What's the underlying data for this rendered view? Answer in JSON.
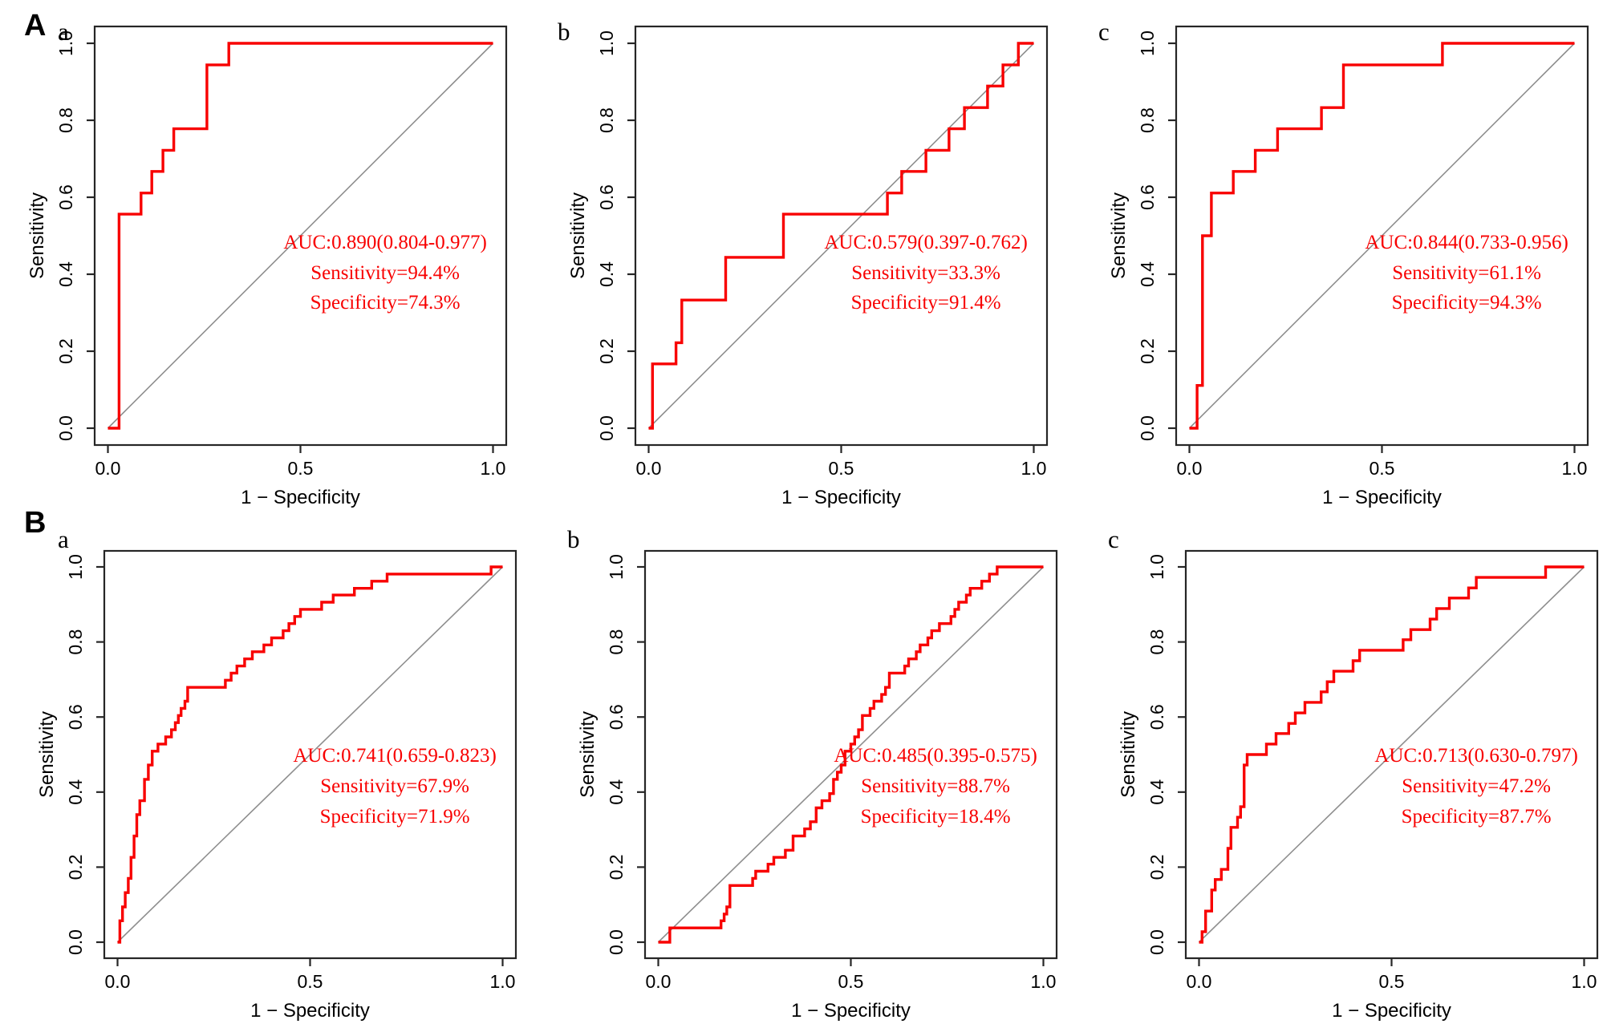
{
  "figure": {
    "background": "#ffffff",
    "colors": {
      "curve": "#f80000",
      "annotation": "#f80000",
      "diagonal": "#8e8e8e",
      "axis": "#262626",
      "text": "#000000"
    },
    "axes": {
      "x_label": "1 − Specificity",
      "y_label": "Sensitivity",
      "x_ticks": [
        "0.0",
        "0.5",
        "1.0"
      ],
      "x_tick_values": [
        0,
        0.5,
        1
      ],
      "y_ticks": [
        "0.0",
        "0.2",
        "0.4",
        "0.6",
        "0.8",
        "1.0"
      ],
      "y_tick_values": [
        0,
        0.2,
        0.4,
        0.6,
        0.8,
        1
      ],
      "xlim": [
        0,
        1
      ],
      "ylim": [
        0,
        1
      ]
    },
    "rows": [
      {
        "label": "A"
      },
      {
        "label": "B"
      }
    ]
  },
  "chart_data": [
    {
      "id": "A-a",
      "row": "A",
      "panel": "a",
      "type": "line",
      "title": "",
      "xlabel": "1 − Specificity",
      "ylabel": "Sensitivity",
      "annotation": {
        "auc": "AUC:0.890(0.804-0.977)",
        "sensitivity": "Sensitivity=94.4%",
        "specificity": "Specificity=74.3%"
      },
      "diagonal_reference": true,
      "roc_points": [
        [
          0,
          0
        ],
        [
          0.029,
          0
        ],
        [
          0.029,
          0.556
        ],
        [
          0.086,
          0.556
        ],
        [
          0.086,
          0.611
        ],
        [
          0.114,
          0.611
        ],
        [
          0.114,
          0.667
        ],
        [
          0.143,
          0.667
        ],
        [
          0.143,
          0.722
        ],
        [
          0.171,
          0.722
        ],
        [
          0.171,
          0.778
        ],
        [
          0.257,
          0.778
        ],
        [
          0.257,
          0.944
        ],
        [
          0.314,
          0.944
        ],
        [
          0.314,
          1
        ],
        [
          1,
          1
        ]
      ]
    },
    {
      "id": "A-b",
      "row": "A",
      "panel": "b",
      "type": "line",
      "title": "",
      "xlabel": "1 − Specificity",
      "ylabel": "Sensitivity",
      "annotation": {
        "auc": "AUC:0.579(0.397-0.762)",
        "sensitivity": "Sensitivity=33.3%",
        "specificity": "Specificity=91.4%"
      },
      "diagonal_reference": true,
      "roc_points": [
        [
          0,
          0
        ],
        [
          0.01,
          0
        ],
        [
          0.01,
          0.167
        ],
        [
          0.071,
          0.167
        ],
        [
          0.071,
          0.222
        ],
        [
          0.086,
          0.222
        ],
        [
          0.086,
          0.333
        ],
        [
          0.2,
          0.333
        ],
        [
          0.2,
          0.444
        ],
        [
          0.35,
          0.444
        ],
        [
          0.35,
          0.556
        ],
        [
          0.62,
          0.556
        ],
        [
          0.62,
          0.611
        ],
        [
          0.657,
          0.611
        ],
        [
          0.657,
          0.667
        ],
        [
          0.72,
          0.667
        ],
        [
          0.72,
          0.722
        ],
        [
          0.78,
          0.722
        ],
        [
          0.78,
          0.778
        ],
        [
          0.82,
          0.778
        ],
        [
          0.82,
          0.833
        ],
        [
          0.88,
          0.833
        ],
        [
          0.88,
          0.889
        ],
        [
          0.92,
          0.889
        ],
        [
          0.92,
          0.944
        ],
        [
          0.96,
          0.944
        ],
        [
          0.96,
          1
        ],
        [
          1,
          1
        ]
      ]
    },
    {
      "id": "A-c",
      "row": "A",
      "panel": "c",
      "type": "line",
      "title": "",
      "xlabel": "1 − Specificity",
      "ylabel": "Sensitivity",
      "annotation": {
        "auc": "AUC:0.844(0.733-0.956)",
        "sensitivity": "Sensitivity=61.1%",
        "specificity": "Specificity=94.3%"
      },
      "diagonal_reference": true,
      "roc_points": [
        [
          0,
          0
        ],
        [
          0.02,
          0
        ],
        [
          0.02,
          0.111
        ],
        [
          0.034,
          0.111
        ],
        [
          0.034,
          0.5
        ],
        [
          0.057,
          0.5
        ],
        [
          0.057,
          0.611
        ],
        [
          0.114,
          0.611
        ],
        [
          0.114,
          0.667
        ],
        [
          0.171,
          0.667
        ],
        [
          0.171,
          0.722
        ],
        [
          0.229,
          0.722
        ],
        [
          0.229,
          0.778
        ],
        [
          0.343,
          0.778
        ],
        [
          0.343,
          0.833
        ],
        [
          0.4,
          0.833
        ],
        [
          0.4,
          0.944
        ],
        [
          0.657,
          0.944
        ],
        [
          0.657,
          1
        ],
        [
          1,
          1
        ]
      ]
    },
    {
      "id": "B-a",
      "row": "B",
      "panel": "a",
      "type": "line",
      "title": "",
      "xlabel": "1 − Specificity",
      "ylabel": "Sensitivity",
      "annotation": {
        "auc": "AUC:0.741(0.659-0.823)",
        "sensitivity": "Sensitivity=67.9%",
        "specificity": "Specificity=71.9%"
      },
      "diagonal_reference": true,
      "roc_points": [
        [
          0,
          0
        ],
        [
          0.006,
          0
        ],
        [
          0.006,
          0.057
        ],
        [
          0.013,
          0.057
        ],
        [
          0.013,
          0.094
        ],
        [
          0.02,
          0.094
        ],
        [
          0.02,
          0.132
        ],
        [
          0.028,
          0.132
        ],
        [
          0.028,
          0.17
        ],
        [
          0.035,
          0.17
        ],
        [
          0.035,
          0.226
        ],
        [
          0.043,
          0.226
        ],
        [
          0.043,
          0.283
        ],
        [
          0.05,
          0.283
        ],
        [
          0.05,
          0.34
        ],
        [
          0.058,
          0.34
        ],
        [
          0.058,
          0.377
        ],
        [
          0.07,
          0.377
        ],
        [
          0.07,
          0.434
        ],
        [
          0.08,
          0.434
        ],
        [
          0.08,
          0.472
        ],
        [
          0.09,
          0.472
        ],
        [
          0.09,
          0.509
        ],
        [
          0.105,
          0.509
        ],
        [
          0.105,
          0.528
        ],
        [
          0.125,
          0.528
        ],
        [
          0.125,
          0.547
        ],
        [
          0.14,
          0.547
        ],
        [
          0.14,
          0.566
        ],
        [
          0.15,
          0.566
        ],
        [
          0.15,
          0.585
        ],
        [
          0.158,
          0.585
        ],
        [
          0.158,
          0.604
        ],
        [
          0.165,
          0.604
        ],
        [
          0.165,
          0.623
        ],
        [
          0.175,
          0.623
        ],
        [
          0.175,
          0.642
        ],
        [
          0.182,
          0.642
        ],
        [
          0.182,
          0.679
        ],
        [
          0.28,
          0.679
        ],
        [
          0.28,
          0.698
        ],
        [
          0.295,
          0.698
        ],
        [
          0.295,
          0.717
        ],
        [
          0.31,
          0.717
        ],
        [
          0.31,
          0.736
        ],
        [
          0.33,
          0.736
        ],
        [
          0.33,
          0.755
        ],
        [
          0.35,
          0.755
        ],
        [
          0.35,
          0.774
        ],
        [
          0.38,
          0.774
        ],
        [
          0.38,
          0.792
        ],
        [
          0.4,
          0.792
        ],
        [
          0.4,
          0.811
        ],
        [
          0.43,
          0.811
        ],
        [
          0.43,
          0.83
        ],
        [
          0.445,
          0.83
        ],
        [
          0.445,
          0.849
        ],
        [
          0.46,
          0.849
        ],
        [
          0.46,
          0.868
        ],
        [
          0.475,
          0.868
        ],
        [
          0.475,
          0.887
        ],
        [
          0.53,
          0.887
        ],
        [
          0.53,
          0.906
        ],
        [
          0.56,
          0.906
        ],
        [
          0.56,
          0.925
        ],
        [
          0.615,
          0.925
        ],
        [
          0.615,
          0.943
        ],
        [
          0.66,
          0.943
        ],
        [
          0.66,
          0.962
        ],
        [
          0.7,
          0.962
        ],
        [
          0.7,
          0.981
        ],
        [
          0.97,
          0.981
        ],
        [
          0.97,
          1
        ],
        [
          1,
          1
        ]
      ]
    },
    {
      "id": "B-b",
      "row": "B",
      "panel": "b",
      "type": "line",
      "title": "",
      "xlabel": "1 − Specificity",
      "ylabel": "Sensitivity",
      "annotation": {
        "auc": "AUC:0.485(0.395-0.575)",
        "sensitivity": "Sensitivity=88.7%",
        "specificity": "Specificity=18.4%"
      },
      "diagonal_reference": true,
      "roc_points": [
        [
          0,
          0
        ],
        [
          0.03,
          0
        ],
        [
          0.03,
          0.038
        ],
        [
          0.163,
          0.038
        ],
        [
          0.163,
          0.057
        ],
        [
          0.171,
          0.057
        ],
        [
          0.171,
          0.075
        ],
        [
          0.178,
          0.075
        ],
        [
          0.178,
          0.094
        ],
        [
          0.186,
          0.094
        ],
        [
          0.186,
          0.151
        ],
        [
          0.245,
          0.151
        ],
        [
          0.245,
          0.17
        ],
        [
          0.253,
          0.17
        ],
        [
          0.253,
          0.189
        ],
        [
          0.285,
          0.189
        ],
        [
          0.285,
          0.208
        ],
        [
          0.3,
          0.208
        ],
        [
          0.3,
          0.226
        ],
        [
          0.33,
          0.226
        ],
        [
          0.33,
          0.245
        ],
        [
          0.35,
          0.245
        ],
        [
          0.35,
          0.283
        ],
        [
          0.38,
          0.283
        ],
        [
          0.38,
          0.302
        ],
        [
          0.395,
          0.302
        ],
        [
          0.395,
          0.321
        ],
        [
          0.41,
          0.321
        ],
        [
          0.41,
          0.358
        ],
        [
          0.425,
          0.358
        ],
        [
          0.425,
          0.377
        ],
        [
          0.445,
          0.377
        ],
        [
          0.445,
          0.396
        ],
        [
          0.455,
          0.396
        ],
        [
          0.455,
          0.434
        ],
        [
          0.465,
          0.434
        ],
        [
          0.465,
          0.453
        ],
        [
          0.475,
          0.453
        ],
        [
          0.475,
          0.472
        ],
        [
          0.485,
          0.472
        ],
        [
          0.485,
          0.509
        ],
        [
          0.5,
          0.509
        ],
        [
          0.5,
          0.528
        ],
        [
          0.51,
          0.528
        ],
        [
          0.51,
          0.547
        ],
        [
          0.52,
          0.547
        ],
        [
          0.52,
          0.566
        ],
        [
          0.53,
          0.566
        ],
        [
          0.53,
          0.604
        ],
        [
          0.55,
          0.604
        ],
        [
          0.55,
          0.623
        ],
        [
          0.56,
          0.623
        ],
        [
          0.56,
          0.642
        ],
        [
          0.58,
          0.642
        ],
        [
          0.58,
          0.66
        ],
        [
          0.59,
          0.66
        ],
        [
          0.59,
          0.679
        ],
        [
          0.6,
          0.679
        ],
        [
          0.6,
          0.717
        ],
        [
          0.64,
          0.717
        ],
        [
          0.64,
          0.736
        ],
        [
          0.65,
          0.736
        ],
        [
          0.65,
          0.755
        ],
        [
          0.67,
          0.755
        ],
        [
          0.67,
          0.774
        ],
        [
          0.68,
          0.774
        ],
        [
          0.68,
          0.792
        ],
        [
          0.7,
          0.792
        ],
        [
          0.7,
          0.811
        ],
        [
          0.71,
          0.811
        ],
        [
          0.71,
          0.83
        ],
        [
          0.73,
          0.83
        ],
        [
          0.73,
          0.849
        ],
        [
          0.76,
          0.849
        ],
        [
          0.76,
          0.868
        ],
        [
          0.77,
          0.868
        ],
        [
          0.77,
          0.887
        ],
        [
          0.78,
          0.887
        ],
        [
          0.78,
          0.906
        ],
        [
          0.8,
          0.906
        ],
        [
          0.8,
          0.925
        ],
        [
          0.81,
          0.925
        ],
        [
          0.81,
          0.943
        ],
        [
          0.84,
          0.943
        ],
        [
          0.84,
          0.962
        ],
        [
          0.86,
          0.962
        ],
        [
          0.86,
          0.981
        ],
        [
          0.88,
          0.981
        ],
        [
          0.88,
          1
        ],
        [
          1,
          1
        ]
      ]
    },
    {
      "id": "B-c",
      "row": "B",
      "panel": "c",
      "type": "line",
      "title": "",
      "xlabel": "1 − Specificity",
      "ylabel": "Sensitivity",
      "annotation": {
        "auc": "AUC:0.713(0.630-0.797)",
        "sensitivity": "Sensitivity=47.2%",
        "specificity": "Specificity=87.7%"
      },
      "diagonal_reference": true,
      "roc_points": [
        [
          0,
          0
        ],
        [
          0.008,
          0
        ],
        [
          0.008,
          0.028
        ],
        [
          0.017,
          0.028
        ],
        [
          0.017,
          0.083
        ],
        [
          0.033,
          0.083
        ],
        [
          0.033,
          0.139
        ],
        [
          0.042,
          0.139
        ],
        [
          0.042,
          0.167
        ],
        [
          0.058,
          0.167
        ],
        [
          0.058,
          0.194
        ],
        [
          0.075,
          0.194
        ],
        [
          0.075,
          0.25
        ],
        [
          0.083,
          0.25
        ],
        [
          0.083,
          0.306
        ],
        [
          0.1,
          0.306
        ],
        [
          0.1,
          0.333
        ],
        [
          0.108,
          0.333
        ],
        [
          0.108,
          0.361
        ],
        [
          0.117,
          0.361
        ],
        [
          0.117,
          0.472
        ],
        [
          0.125,
          0.472
        ],
        [
          0.125,
          0.5
        ],
        [
          0.175,
          0.5
        ],
        [
          0.175,
          0.528
        ],
        [
          0.2,
          0.528
        ],
        [
          0.2,
          0.556
        ],
        [
          0.233,
          0.556
        ],
        [
          0.233,
          0.583
        ],
        [
          0.25,
          0.583
        ],
        [
          0.25,
          0.611
        ],
        [
          0.275,
          0.611
        ],
        [
          0.275,
          0.639
        ],
        [
          0.317,
          0.639
        ],
        [
          0.317,
          0.667
        ],
        [
          0.333,
          0.667
        ],
        [
          0.333,
          0.694
        ],
        [
          0.35,
          0.694
        ],
        [
          0.35,
          0.722
        ],
        [
          0.4,
          0.722
        ],
        [
          0.4,
          0.75
        ],
        [
          0.417,
          0.75
        ],
        [
          0.417,
          0.778
        ],
        [
          0.53,
          0.778
        ],
        [
          0.53,
          0.806
        ],
        [
          0.55,
          0.806
        ],
        [
          0.55,
          0.833
        ],
        [
          0.6,
          0.833
        ],
        [
          0.6,
          0.861
        ],
        [
          0.617,
          0.861
        ],
        [
          0.617,
          0.889
        ],
        [
          0.65,
          0.889
        ],
        [
          0.65,
          0.917
        ],
        [
          0.7,
          0.917
        ],
        [
          0.7,
          0.944
        ],
        [
          0.72,
          0.944
        ],
        [
          0.72,
          0.972
        ],
        [
          0.9,
          0.972
        ],
        [
          0.9,
          1
        ],
        [
          1,
          1
        ]
      ]
    }
  ]
}
